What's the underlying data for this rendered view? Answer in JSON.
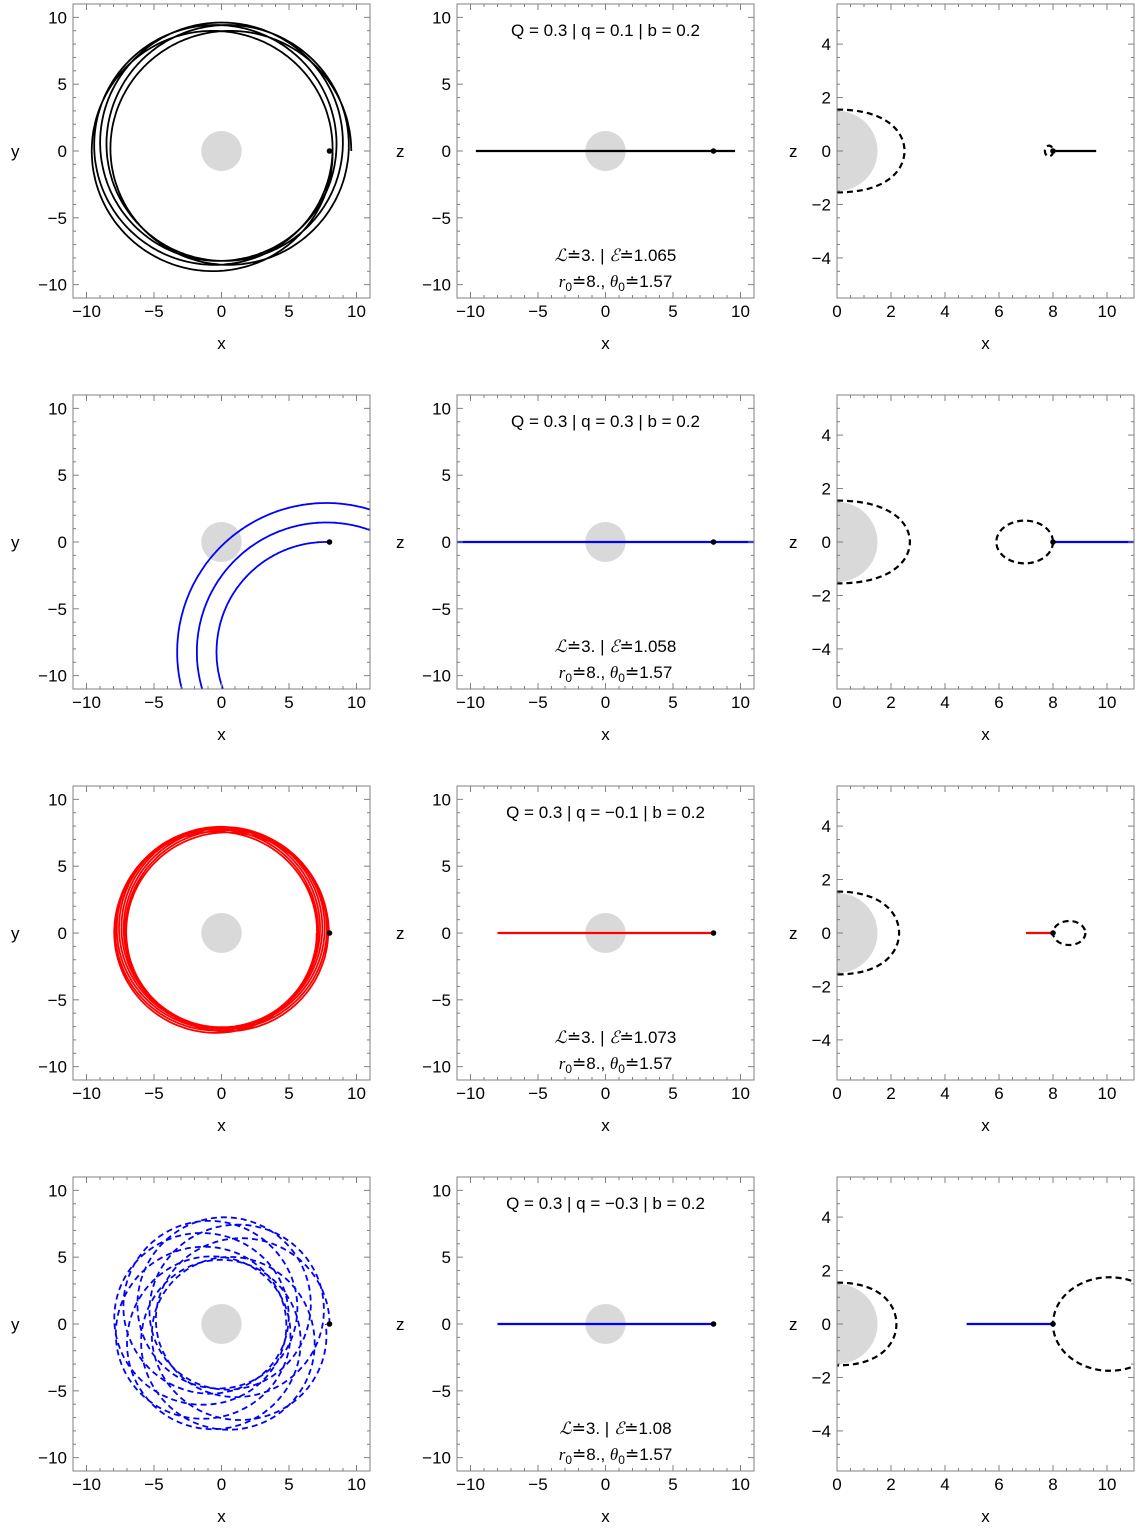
{
  "chart_data": [
    {
      "type": "line",
      "panel": "orbit-xy",
      "row": 0,
      "col": 0,
      "xlabel": "x",
      "ylabel": "y",
      "xlim": [
        -11,
        11
      ],
      "ylim": [
        -11,
        11
      ],
      "xticks": [
        -10,
        -5,
        0,
        5,
        10
      ],
      "yticks": [
        -10,
        -5,
        0,
        5,
        10
      ],
      "center_disk_radius": 1.5,
      "color": "#000000",
      "line_style": "solid",
      "start_point": [
        8,
        0
      ],
      "orbit": {
        "kind": "rosette",
        "a": 8.9,
        "e": 0.08,
        "precession_deg": 40,
        "loops": 5
      }
    },
    {
      "type": "line",
      "panel": "orbit-xz",
      "row": 0,
      "col": 1,
      "xlabel": "x",
      "ylabel": "z",
      "xlim": [
        -11,
        11
      ],
      "ylim": [
        -11,
        11
      ],
      "xticks": [
        -10,
        -5,
        0,
        5,
        10
      ],
      "yticks": [
        -10,
        -5,
        0,
        5,
        10
      ],
      "center_disk_radius": 1.5,
      "color": "#000000",
      "line_style": "solid",
      "start_point": [
        8,
        0
      ],
      "segment": {
        "x": [
          -9.6,
          9.6
        ],
        "z": [
          0,
          0
        ]
      },
      "title": "Q = 0.3 | q = 0.1 | b = 0.2",
      "text_L": "3.",
      "text_E": "1.065",
      "text_r0": "8.",
      "text_theta0": "1.57"
    },
    {
      "type": "line",
      "panel": "effective-potential",
      "row": 0,
      "col": 2,
      "xlabel": "x",
      "ylabel": "z",
      "xlim": [
        0,
        11
      ],
      "ylim": [
        -5.5,
        5.5
      ],
      "xticks": [
        0,
        2,
        4,
        6,
        8,
        10
      ],
      "yticks": [
        -4,
        -2,
        0,
        2,
        4
      ],
      "center_disk_radius": 1.5,
      "color": "#000000",
      "line_style": "solid",
      "start_point": [
        8,
        0
      ],
      "inner_boundary": {
        "x_max": 2.5,
        "z_max": 1.55
      },
      "closed_curves": [
        {
          "x_min": 7.7,
          "x_max": 8.0,
          "z_max": 0.2
        }
      ],
      "segment": {
        "x": [
          8,
          9.6
        ],
        "z": [
          0,
          0
        ]
      }
    },
    {
      "type": "line",
      "panel": "orbit-xy",
      "row": 1,
      "col": 0,
      "xlabel": "x",
      "ylabel": "y",
      "xlim": [
        -11,
        11
      ],
      "ylim": [
        -11,
        11
      ],
      "xticks": [
        -10,
        -5,
        0,
        5,
        10
      ],
      "yticks": [
        -10,
        -5,
        0,
        5,
        10
      ],
      "center_disk_radius": 1.5,
      "color": "#0000ff",
      "line_style": "solid",
      "start_point": [
        8,
        0
      ],
      "orbit": {
        "kind": "spiral",
        "r_min": 8,
        "r_max": 11.5,
        "turns": 2.4
      }
    },
    {
      "type": "line",
      "panel": "orbit-xz",
      "row": 1,
      "col": 1,
      "xlabel": "x",
      "ylabel": "z",
      "xlim": [
        -11,
        11
      ],
      "ylim": [
        -11,
        11
      ],
      "xticks": [
        -10,
        -5,
        0,
        5,
        10
      ],
      "yticks": [
        -10,
        -5,
        0,
        5,
        10
      ],
      "center_disk_radius": 1.5,
      "color": "#0000ff",
      "line_style": "solid",
      "start_point": [
        8,
        0
      ],
      "segment": {
        "x": [
          -11,
          11
        ],
        "z": [
          0,
          0
        ]
      },
      "title": "Q = 0.3 | q = 0.3 | b = 0.2",
      "text_L": "3.",
      "text_E": "1.058",
      "text_r0": "8.",
      "text_theta0": "1.57"
    },
    {
      "type": "line",
      "panel": "effective-potential",
      "row": 1,
      "col": 2,
      "xlabel": "x",
      "ylabel": "z",
      "xlim": [
        0,
        11
      ],
      "ylim": [
        -5.5,
        5.5
      ],
      "xticks": [
        0,
        2,
        4,
        6,
        8,
        10
      ],
      "yticks": [
        -4,
        -2,
        0,
        2,
        4
      ],
      "center_disk_radius": 1.5,
      "color": "#0000ff",
      "line_style": "solid",
      "start_point": [
        8,
        0
      ],
      "inner_boundary": {
        "x_max": 2.7,
        "z_max": 1.55
      },
      "closed_curves": [
        {
          "x_min": 5.9,
          "x_max": 8.0,
          "z_max": 0.8
        }
      ],
      "segment": {
        "x": [
          8,
          11
        ],
        "z": [
          0,
          0
        ]
      }
    },
    {
      "type": "line",
      "panel": "orbit-xy",
      "row": 2,
      "col": 0,
      "xlabel": "x",
      "ylabel": "y",
      "xlim": [
        -11,
        11
      ],
      "ylim": [
        -11,
        11
      ],
      "xticks": [
        -10,
        -5,
        0,
        5,
        10
      ],
      "yticks": [
        -10,
        -5,
        0,
        5,
        10
      ],
      "center_disk_radius": 1.5,
      "color": "#ff0000",
      "line_style": "solid",
      "start_point": [
        8,
        0
      ],
      "orbit": {
        "kind": "rosette",
        "a": 7.5,
        "e": 0.06,
        "precession_deg": 23,
        "loops": 8
      }
    },
    {
      "type": "line",
      "panel": "orbit-xz",
      "row": 2,
      "col": 1,
      "xlabel": "x",
      "ylabel": "z",
      "xlim": [
        -11,
        11
      ],
      "ylim": [
        -11,
        11
      ],
      "xticks": [
        -10,
        -5,
        0,
        5,
        10
      ],
      "yticks": [
        -10,
        -5,
        0,
        5,
        10
      ],
      "center_disk_radius": 1.5,
      "color": "#ff0000",
      "line_style": "solid",
      "start_point": [
        8,
        0
      ],
      "segment": {
        "x": [
          -8,
          8
        ],
        "z": [
          0,
          0
        ]
      },
      "title": "Q = 0.3 | q = −0.1 | b = 0.2",
      "text_L": "3.",
      "text_E": "1.073",
      "text_r0": "8.",
      "text_theta0": "1.57"
    },
    {
      "type": "line",
      "panel": "effective-potential",
      "row": 2,
      "col": 2,
      "xlabel": "x",
      "ylabel": "z",
      "xlim": [
        0,
        11
      ],
      "ylim": [
        -5.5,
        5.5
      ],
      "xticks": [
        0,
        2,
        4,
        6,
        8,
        10
      ],
      "yticks": [
        -4,
        -2,
        0,
        2,
        4
      ],
      "center_disk_radius": 1.5,
      "color": "#ff0000",
      "line_style": "solid",
      "start_point": [
        8,
        0
      ],
      "inner_boundary": {
        "x_max": 2.3,
        "z_max": 1.55
      },
      "closed_curves": [
        {
          "x_min": 8.0,
          "x_max": 9.2,
          "z_max": 0.45
        }
      ],
      "segment": {
        "x": [
          7,
          8
        ],
        "z": [
          0,
          0
        ]
      }
    },
    {
      "type": "line",
      "panel": "orbit-xy",
      "row": 3,
      "col": 0,
      "xlabel": "x",
      "ylabel": "y",
      "xlim": [
        -11,
        11
      ],
      "ylim": [
        -11,
        11
      ],
      "xticks": [
        -10,
        -5,
        0,
        5,
        10
      ],
      "yticks": [
        -10,
        -5,
        0,
        5,
        10
      ],
      "center_disk_radius": 1.5,
      "color": "#0000ff",
      "line_style": "dashed",
      "start_point": [
        8,
        0
      ],
      "orbit": {
        "kind": "rosette",
        "a": 6.4,
        "e": 0.25,
        "precession_deg": 37,
        "loops": 9
      }
    },
    {
      "type": "line",
      "panel": "orbit-xz",
      "row": 3,
      "col": 1,
      "xlabel": "x",
      "ylabel": "z",
      "xlim": [
        -11,
        11
      ],
      "ylim": [
        -11,
        11
      ],
      "xticks": [
        -10,
        -5,
        0,
        5,
        10
      ],
      "yticks": [
        -10,
        -5,
        0,
        5,
        10
      ],
      "center_disk_radius": 1.5,
      "color": "#0000ff",
      "line_style": "solid",
      "start_point": [
        8,
        0
      ],
      "segment": {
        "x": [
          -8,
          8
        ],
        "z": [
          0,
          0
        ]
      },
      "title": "Q = 0.3 | q = −0.3 | b = 0.2",
      "text_L": "3.",
      "text_E": "1.08",
      "text_r0": "8.",
      "text_theta0": "1.57"
    },
    {
      "type": "line",
      "panel": "effective-potential",
      "row": 3,
      "col": 2,
      "xlabel": "x",
      "ylabel": "z",
      "xlim": [
        0,
        11
      ],
      "ylim": [
        -5.5,
        5.5
      ],
      "xticks": [
        0,
        2,
        4,
        6,
        8,
        10
      ],
      "yticks": [
        -4,
        -2,
        0,
        2,
        4
      ],
      "center_disk_radius": 1.5,
      "color": "#0000ff",
      "line_style": "solid",
      "start_point": [
        8,
        0
      ],
      "inner_boundary": {
        "x_max": 2.2,
        "z_max": 1.55
      },
      "closed_curves": [
        {
          "x_min": 8.0,
          "x_max": 12.2,
          "z_max": 1.75
        }
      ],
      "segment": {
        "x": [
          4.8,
          8
        ],
        "z": [
          0,
          0
        ]
      }
    }
  ]
}
